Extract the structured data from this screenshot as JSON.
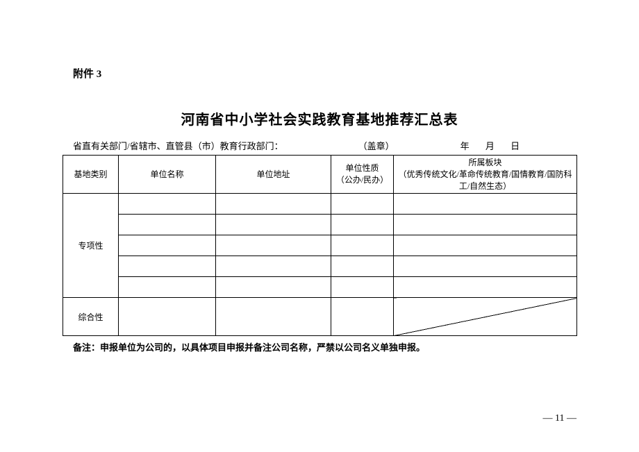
{
  "attachment_label": "附件 3",
  "title": "河南省中小学社会实践教育基地推荐汇总表",
  "subtitle": {
    "department": "省直有关部门/省辖市、直管县（市）教育行政部门：",
    "seal": "（盖章）",
    "date_year": "年",
    "date_month": "月",
    "date_day": "日"
  },
  "headers": {
    "category": "基地类别",
    "unit_name": "单位名称",
    "unit_address": "单位地址",
    "unit_nature_line1": "单位性质",
    "unit_nature_line2": "（公办/民办）",
    "section_line1": "所属板块",
    "section_line2": "（优秀传统文化/革命传统教育/国情教育/国防科工/自然生态）"
  },
  "row_categories": {
    "special": "专项性",
    "composite": "综合性"
  },
  "note": "备注：申报单位为公司的，以具体项目申报并备注公司名称，严禁以公司名义单独申报。",
  "page_number": "— 11 —",
  "table_style": {
    "border_color": "#000000",
    "background_color": "#ffffff",
    "text_color": "#000000"
  }
}
